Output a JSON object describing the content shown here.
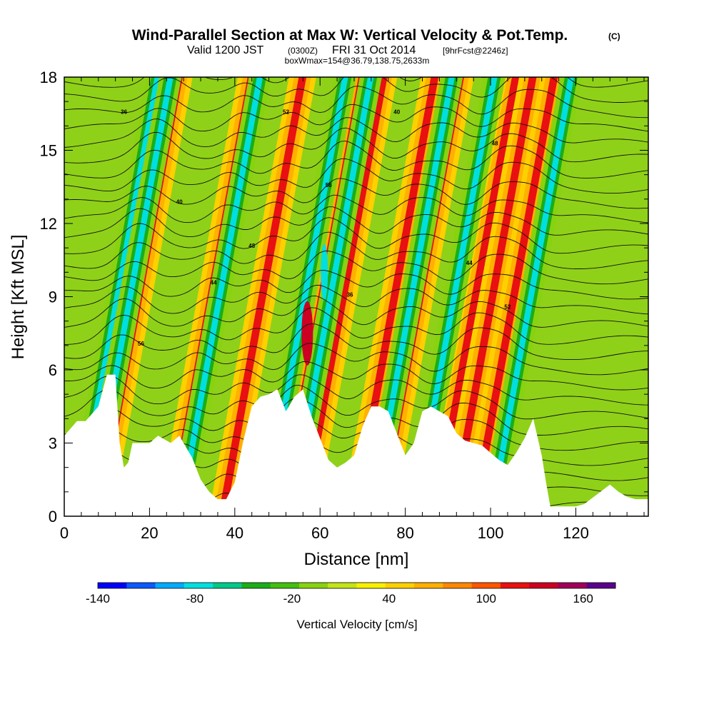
{
  "header": {
    "title": "Wind-Parallel Section at Max W: Vertical Velocity & Pot.Temp.",
    "copyright": "(C)",
    "valid_prefix": "Valid 1200 JST",
    "valid_utc": "(0300Z)",
    "valid_date": "FRI 31 Oct 2014",
    "forecast_tag": "[9hrFcst@2246z]",
    "box_info": "boxWmax=154@36.79,138.75,2633m"
  },
  "chart_data": {
    "type": "heatmap",
    "xlabel": "Distance [nm]",
    "ylabel": "Height [Kft MSL]",
    "xlim": [
      0,
      137
    ],
    "ylim": [
      0,
      18
    ],
    "x_ticks": [
      0,
      20,
      40,
      60,
      80,
      100,
      120
    ],
    "y_ticks": [
      0,
      3,
      6,
      9,
      12,
      15,
      18
    ],
    "colorbar": {
      "label": "Vertical Velocity [cm/s]",
      "tick_labels": [
        "-140",
        "-80",
        "-20",
        "40",
        "100",
        "160"
      ],
      "tick_values": [
        -140,
        -80,
        -20,
        40,
        100,
        160
      ],
      "range": [
        -140,
        180
      ],
      "colors": [
        "#0000ff",
        "#0a5aff",
        "#00aaff",
        "#00dfe0",
        "#00c98a",
        "#1aad1a",
        "#44be10",
        "#88d210",
        "#c4e418",
        "#f8f000",
        "#ffd000",
        "#ffb000",
        "#ff8800",
        "#ff5500",
        "#e81010",
        "#cc0022",
        "#a0005a",
        "#5a008c"
      ]
    },
    "terrain_kft": {
      "x": [
        0,
        3,
        5,
        8,
        10,
        12,
        13,
        14,
        15,
        16,
        18,
        20,
        22,
        25,
        27,
        30,
        32,
        34,
        36,
        38,
        40,
        42,
        44,
        46,
        48,
        50,
        52,
        54,
        56,
        58,
        60,
        62,
        64,
        66,
        68,
        70,
        72,
        74,
        76,
        78,
        80,
        82,
        84,
        86,
        88,
        90,
        92,
        94,
        96,
        98,
        100,
        102,
        104,
        106,
        108,
        110,
        112,
        113,
        114,
        116,
        118,
        120,
        122,
        125,
        128,
        130,
        132,
        134,
        137
      ],
      "h": [
        3.3,
        3.9,
        3.9,
        4.5,
        5.8,
        5.8,
        3.0,
        2.0,
        2.2,
        3.0,
        3.0,
        3.0,
        3.3,
        3.0,
        3.3,
        2.4,
        1.5,
        1.0,
        0.7,
        0.7,
        1.4,
        3.1,
        4.5,
        4.9,
        5.0,
        5.2,
        4.3,
        4.9,
        5.2,
        4.1,
        3.2,
        2.3,
        2.0,
        2.2,
        2.5,
        3.7,
        4.5,
        4.5,
        4.3,
        3.4,
        2.5,
        3.0,
        4.3,
        4.5,
        4.3,
        4.1,
        3.4,
        3.1,
        3.0,
        2.9,
        2.6,
        2.3,
        2.1,
        2.6,
        3.2,
        4.0,
        2.5,
        1.4,
        0.4,
        0.4,
        0.4,
        0.4,
        0.5,
        0.9,
        1.3,
        1.0,
        0.8,
        0.7,
        0.7
      ]
    },
    "updraft_axes_nm": [
      12,
      16,
      33,
      45,
      57,
      59,
      64,
      76,
      82,
      95,
      99,
      104
    ],
    "downdraft_axes_nm": [
      11,
      14,
      35,
      55,
      61,
      80,
      90,
      108
    ],
    "theta_contour_labels": [
      "36",
      "40",
      "44",
      "48",
      "52",
      "56"
    ]
  }
}
